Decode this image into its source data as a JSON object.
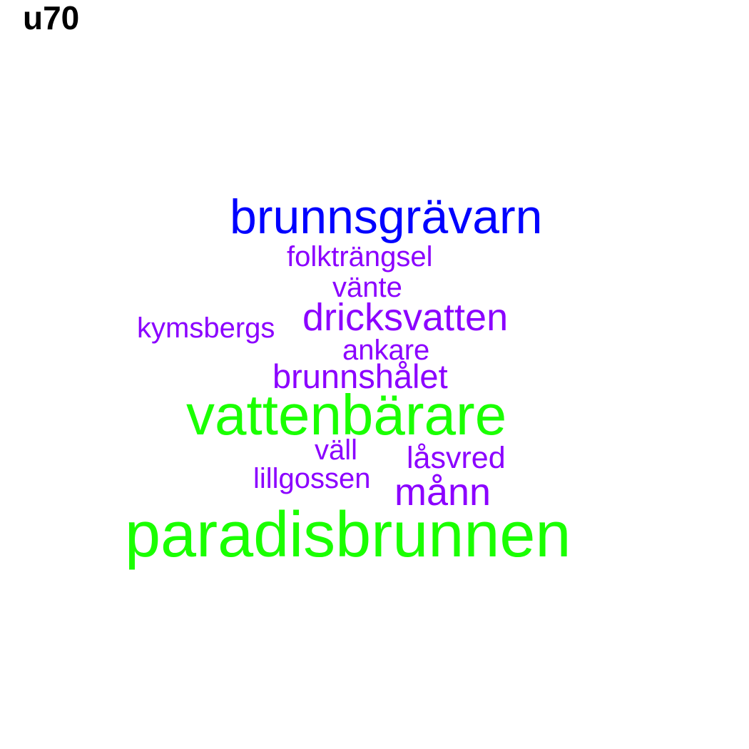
{
  "panel_label": "u70",
  "colors": {
    "blue": "#0000ff",
    "purple": "#8b00ff",
    "green": "#1aff00"
  },
  "words": {
    "brunnsgravarn": "brunnsgrävarn",
    "folktrangsel": "folkträngsel",
    "vante": "vänte",
    "dricksvatten": "dricksvatten",
    "kymsbergs": "kymsbergs",
    "ankare": "ankare",
    "brunnshalet": "brunnshålet",
    "vattenbarare": "vattenbärare",
    "vall": "väll",
    "lasvred": "låsvred",
    "lillgossen": "lillgossen",
    "mann": "månn",
    "paradisbrunnen": "paradisbrunnen"
  },
  "word_colors": {
    "brunnsgravarn": "blue",
    "folktrangsel": "purple",
    "vante": "purple",
    "dricksvatten": "purple",
    "kymsbergs": "purple",
    "ankare": "purple",
    "brunnshalet": "purple",
    "vattenbarare": "green",
    "vall": "purple",
    "lasvred": "purple",
    "lillgossen": "purple",
    "mann": "purple",
    "paradisbrunnen": "green"
  }
}
